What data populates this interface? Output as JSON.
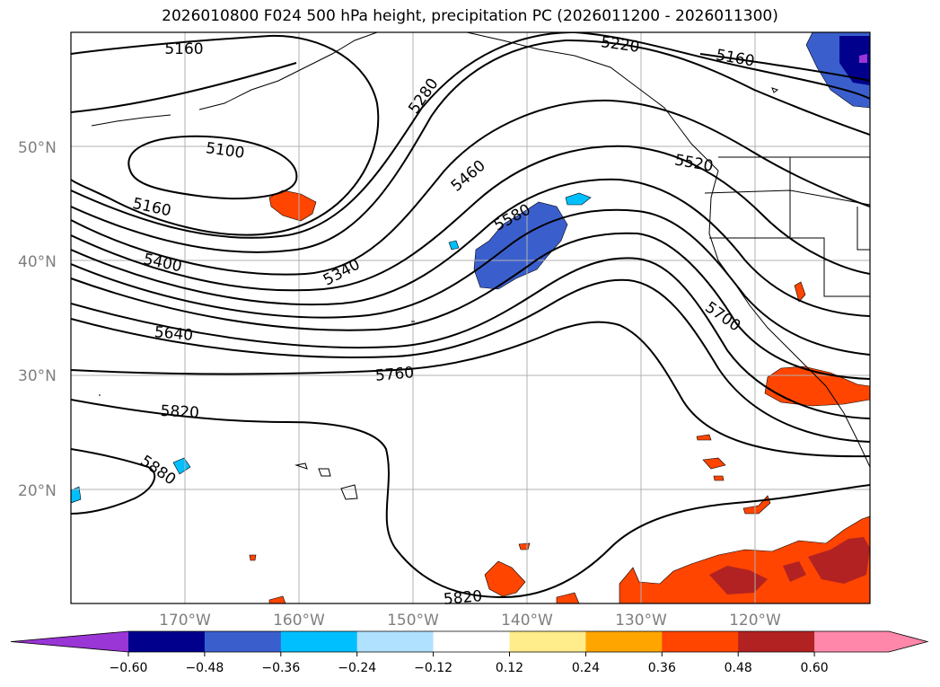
{
  "title": "2026010800 F024 500 hPa height, precipitation PC (2026011200 - 2026011300)",
  "map": {
    "lat_labels": [
      "50°N",
      "40°N",
      "30°N",
      "20°N"
    ],
    "lon_labels": [
      "170°W",
      "160°W",
      "150°W",
      "140°W",
      "130°W",
      "120°W"
    ],
    "contour_labels": {
      "c5160_nw": "5160",
      "c5220_n": "5220",
      "c5160_ne": "5160",
      "c5280": "5280",
      "c5100": "5100",
      "c5160_w": "5160",
      "c5460": "5460",
      "c5520": "5520",
      "c5580": "5580",
      "c5400": "5400",
      "c5340": "5340",
      "c5700": "5700",
      "c5640": "5640",
      "c5760": "5760",
      "c5820_w": "5820",
      "c5880": "5880",
      "c5820_s": "5820"
    }
  },
  "colorbar": {
    "ticks": [
      "−0.60",
      "−0.48",
      "−0.36",
      "−0.24",
      "−0.12",
      "0.12",
      "0.24",
      "0.36",
      "0.48",
      "0.60"
    ],
    "colors": [
      "#9a35d6",
      "#00008c",
      "#3a5fcd",
      "#00bfff",
      "#b0e2ff",
      "#ffffff",
      "#ffec8b",
      "#ffa500",
      "#ff4500",
      "#b22222",
      "#ff88aa",
      "#ff88aa"
    ]
  }
}
